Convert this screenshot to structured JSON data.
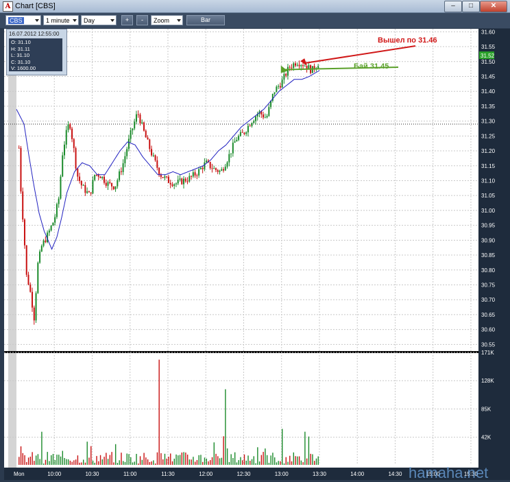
{
  "window": {
    "title": "Chart [CBS]",
    "buttons": [
      "–",
      "□",
      "✕"
    ]
  },
  "toolbar": {
    "symbol": "CBS",
    "interval": "1 minute",
    "range": "Day",
    "plus": "+",
    "minus": "-",
    "zoom": "Zoom",
    "bar": "Bar"
  },
  "info": {
    "date": "16.07.2012 12:55:00",
    "open": "O: 31.10",
    "high": "H: 31.11",
    "low": "L: 31.10",
    "close": "C: 31.10",
    "volume": "V: 1600.00"
  },
  "annotations": {
    "buy": "Бай 31.45",
    "sell": "Вышел по 31.46"
  },
  "watermark": "hamaha.net",
  "colors": {
    "up": "#1a8a2a",
    "down": "#c81010",
    "ma": "#2020c0",
    "buy_text": "#5aa02a",
    "sell_text": "#d01818"
  },
  "chart_data": [
    {
      "type": "line",
      "title": "",
      "price_axis": {
        "ticks": [
          "31.60",
          "31.55",
          "31.50",
          "31.45",
          "31.40",
          "31.35",
          "31.30",
          "31.25",
          "31.20",
          "31.15",
          "31.10",
          "31.05",
          "31.00",
          "30.95",
          "30.90",
          "30.85",
          "30.80",
          "30.75",
          "30.70",
          "30.65",
          "30.60",
          "30.55"
        ],
        "ylim": [
          30.53,
          31.61
        ],
        "last_price_label": "31.52",
        "reference_line": 31.29
      },
      "time_axis": {
        "ticks": [
          "Mon",
          "10:00",
          "10:30",
          "11:00",
          "11:30",
          "12:00",
          "12:30",
          "13:00",
          "13:30",
          "14:00",
          "14:30",
          "15:00",
          "15:30"
        ],
        "x_minutes": [
          0,
          30,
          60,
          90,
          120,
          150,
          180,
          210,
          240,
          270,
          300,
          330,
          360
        ]
      },
      "price_keypoints": [
        [
          2,
          31.21
        ],
        [
          3,
          31.1
        ],
        [
          6,
          30.92
        ],
        [
          8,
          30.78
        ],
        [
          10,
          30.75
        ],
        [
          12,
          30.7
        ],
        [
          14,
          30.64
        ],
        [
          17,
          30.82
        ],
        [
          20,
          30.88
        ],
        [
          25,
          30.92
        ],
        [
          30,
          30.97
        ],
        [
          34,
          31.05
        ],
        [
          36,
          31.18
        ],
        [
          39,
          31.25
        ],
        [
          42,
          31.3
        ],
        [
          45,
          31.22
        ],
        [
          48,
          31.12
        ],
        [
          52,
          31.08
        ],
        [
          58,
          31.05
        ],
        [
          62,
          31.12
        ],
        [
          66,
          31.12
        ],
        [
          72,
          31.09
        ],
        [
          78,
          31.08
        ],
        [
          84,
          31.15
        ],
        [
          90,
          31.25
        ],
        [
          96,
          31.33
        ],
        [
          102,
          31.25
        ],
        [
          108,
          31.18
        ],
        [
          114,
          31.12
        ],
        [
          120,
          31.1
        ],
        [
          126,
          31.09
        ],
        [
          132,
          31.1
        ],
        [
          138,
          31.11
        ],
        [
          144,
          31.13
        ],
        [
          150,
          31.16
        ],
        [
          156,
          31.14
        ],
        [
          162,
          31.13
        ],
        [
          168,
          31.18
        ],
        [
          174,
          31.24
        ],
        [
          180,
          31.26
        ],
        [
          186,
          31.3
        ],
        [
          192,
          31.33
        ],
        [
          198,
          31.31
        ],
        [
          204,
          31.4
        ],
        [
          210,
          31.43
        ],
        [
          216,
          31.48
        ],
        [
          222,
          31.5
        ],
        [
          228,
          31.49
        ],
        [
          234,
          31.47
        ],
        [
          240,
          31.5
        ]
      ],
      "moving_average_keypoints": [
        [
          0,
          31.34
        ],
        [
          6,
          31.29
        ],
        [
          10,
          31.18
        ],
        [
          14,
          31.08
        ],
        [
          18,
          30.99
        ],
        [
          22,
          30.93
        ],
        [
          26,
          30.89
        ],
        [
          28,
          30.87
        ],
        [
          32,
          30.91
        ],
        [
          36,
          30.98
        ],
        [
          40,
          31.06
        ],
        [
          46,
          31.13
        ],
        [
          52,
          31.16
        ],
        [
          58,
          31.15
        ],
        [
          64,
          31.12
        ],
        [
          70,
          31.12
        ],
        [
          76,
          31.16
        ],
        [
          82,
          31.2
        ],
        [
          88,
          31.23
        ],
        [
          94,
          31.22
        ],
        [
          100,
          31.18
        ],
        [
          106,
          31.15
        ],
        [
          112,
          31.12
        ],
        [
          118,
          31.12
        ],
        [
          124,
          31.13
        ],
        [
          130,
          31.12
        ],
        [
          136,
          31.13
        ],
        [
          142,
          31.14
        ],
        [
          148,
          31.15
        ],
        [
          154,
          31.17
        ],
        [
          160,
          31.2
        ],
        [
          166,
          31.22
        ],
        [
          172,
          31.25
        ],
        [
          178,
          31.28
        ],
        [
          184,
          31.3
        ],
        [
          190,
          31.32
        ],
        [
          196,
          31.34
        ],
        [
          202,
          31.37
        ],
        [
          208,
          31.4
        ],
        [
          214,
          31.42
        ],
        [
          220,
          31.44
        ],
        [
          226,
          31.44
        ],
        [
          232,
          31.45
        ],
        [
          240,
          31.47
        ]
      ]
    },
    {
      "type": "bar",
      "title": "",
      "volume_axis": {
        "ticks": [
          "171K",
          "128K",
          "85K",
          "42K"
        ],
        "ylim": [
          0,
          171000
        ]
      }
    }
  ]
}
